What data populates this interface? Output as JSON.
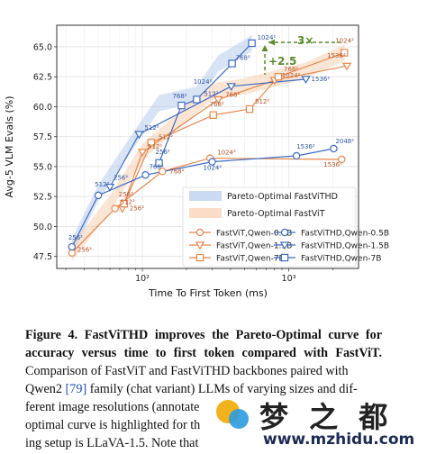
{
  "chart_data": {
    "type": "line",
    "xscale": "log",
    "xlim": [
      26,
      3000
    ],
    "ylim": [
      46.5,
      66.8
    ],
    "xlabel": "Time To First Token (ms)",
    "ylabel": "Avg-5 VLM Evals (%)",
    "xtick_labels": [
      "10²",
      "10³"
    ],
    "yticks": [
      47.5,
      50.0,
      52.5,
      55.0,
      57.5,
      60.0,
      62.5,
      65.0
    ],
    "ytick_labels": [
      "47.5",
      "50.0",
      "52.5",
      "55.0",
      "57.5",
      "60.0",
      "62.5",
      "65.0"
    ],
    "bands": [
      {
        "name": "Pareto-Optimal FastViTHD",
        "color": "#a9c1ea",
        "x": [
          33,
          50,
          95,
          130,
          235,
          330,
          560
        ],
        "y": [
          48.3,
          52.8,
          57.9,
          60.3,
          61.0,
          63.6,
          65.3
        ]
      },
      {
        "name": "Pareto-Optimal FastViT",
        "color": "#f7c5a2",
        "x": [
          33,
          60,
          100,
          185,
          305,
          500,
          1300,
          2400
        ],
        "y": [
          47.8,
          51.9,
          56.2,
          59.1,
          61.3,
          61.7,
          63.0,
          64.5
        ]
      }
    ],
    "series": [
      {
        "name": "FastViT,Qwen-0.5B",
        "color": "#e8864a",
        "marker": "circle",
        "x": [
          33,
          65,
          137,
          290,
          2300
        ],
        "y": [
          47.8,
          51.5,
          54.6,
          55.7,
          55.6
        ],
        "labels": [
          "256²",
          "512²",
          "768²",
          "1024²",
          "1536²"
        ],
        "label_dx": [
          6,
          6,
          8,
          8,
          -20
        ],
        "label_dy": [
          -1,
          -5,
          2,
          -4,
          8
        ]
      },
      {
        "name": "FastViT,Qwen-1.5B",
        "color": "#e8864a",
        "marker": "tri_down",
        "x": [
          73,
          100,
          330,
          800,
          2500
        ],
        "y": [
          51.5,
          56.2,
          60.6,
          62.2,
          63.4
        ],
        "labels": [
          "256²",
          "512²",
          "768²",
          "1024²",
          "1536²"
        ],
        "label_dx": [
          8,
          6,
          8,
          8,
          -22
        ],
        "label_dy": [
          2,
          -4,
          -3,
          -3,
          -9
        ]
      },
      {
        "name": "FastViT,Qwen-7B",
        "color": "#e8864a",
        "marker": "square",
        "x": [
          75,
          115,
          305,
          540,
          850,
          2400
        ],
        "y": [
          51.9,
          57.0,
          59.3,
          59.8,
          62.5,
          64.5
        ],
        "labels": [
          "256²",
          "512²",
          "768²",
          "512²",
          "768²",
          "1024²"
        ],
        "label_dx": [
          -6,
          8,
          -4,
          6,
          6,
          -10
        ],
        "label_dy": [
          -8,
          -4,
          -10,
          -6,
          -6,
          -11
        ]
      },
      {
        "name": "FastViTHD,Qwen-0.5B",
        "color": "#3d6dc4",
        "marker": "circle",
        "x": [
          33,
          50,
          105,
          300,
          1130,
          2030
        ],
        "y": [
          48.3,
          52.6,
          54.3,
          55.4,
          55.9,
          56.5
        ],
        "labels": [
          "256²",
          "512²",
          "768²",
          "1024²",
          "1536²",
          "2048²"
        ],
        "label_dx": [
          -4,
          -4,
          4,
          -10,
          0,
          2
        ],
        "label_dy": [
          -8,
          -10,
          -7,
          9,
          -8,
          -6
        ]
      },
      {
        "name": "FastViTHD,Qwen-1.5B",
        "color": "#3d6dc4",
        "marker": "tri_down",
        "x": [
          60,
          95,
          405,
          1310
        ],
        "y": [
          53.3,
          57.7,
          61.7,
          62.3
        ],
        "labels": [
          "256²",
          "512²",
          "1024²",
          "1536²"
        ],
        "label_dx": [
          4,
          6,
          -42,
          6
        ],
        "label_dy": [
          -8,
          -5,
          -3,
          2
        ]
      },
      {
        "name": "FastViTHD,Qwen-7B",
        "color": "#3d6dc4",
        "marker": "square",
        "x": [
          130,
          185,
          235,
          410,
          560
        ],
        "y": [
          55.3,
          60.1,
          60.6,
          63.6,
          65.3
        ],
        "labels": [
          "256²",
          "768²",
          "512²",
          "768²",
          "1024²"
        ],
        "label_dx": [
          -4,
          -10,
          8,
          4,
          6
        ],
        "label_dy": [
          -10,
          -8,
          -4,
          -4,
          -4
        ]
      }
    ],
    "annotations": [
      {
        "text": "3×",
        "color": "#5d8c2e"
      },
      {
        "text": "+2.5",
        "color": "#5d8c2e"
      }
    ],
    "legend": {
      "placement": "lower-right"
    },
    "grid": true
  },
  "caption": {
    "lead": "Figure 4.  FastViTHD improves the Pareto-Optimal curve for accuracy versus time to first token compared with FastViT.",
    "line1": "Comparison of FastViT and FastViTHD backbones paired with",
    "line2a": "Qwen2 ",
    "line2ref": "[79]",
    "line2b": " family (chat variant) LLMs of varying sizes and dif-",
    "line3": "ferent image resolutions (annotate",
    "line4": "optimal curve is highlighted for th",
    "line5": "ing setup is LLaVA-1.5. Note that"
  },
  "watermark": {
    "title": "梦 之 都",
    "url": "www.mzhidu.com"
  }
}
